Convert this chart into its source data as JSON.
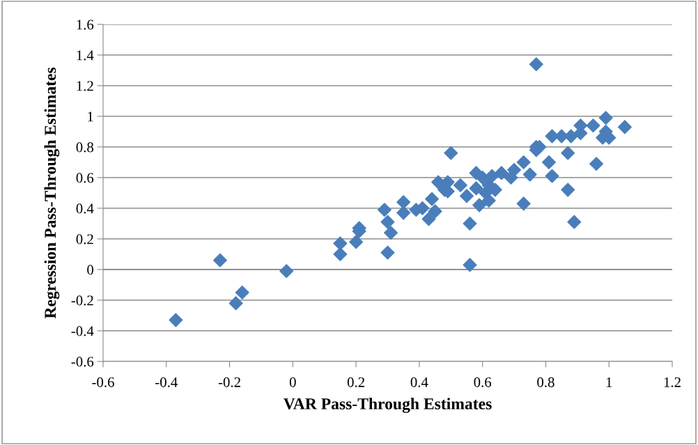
{
  "chart_data": {
    "type": "scatter",
    "xlabel": "VAR Pass-Through Estimates",
    "ylabel": "Regression Pass-Through Estimates",
    "xlim": [
      -0.6,
      1.2
    ],
    "xticks": [
      -0.6,
      -0.4,
      -0.2,
      0,
      0.2,
      0.4,
      0.6,
      0.8,
      1,
      1.2
    ],
    "ylim": [
      -0.6,
      1.6
    ],
    "yticks": [
      -0.6,
      -0.4,
      -0.2,
      0,
      0.2,
      0.4,
      0.6,
      0.8,
      1,
      1.2,
      1.4,
      1.6
    ],
    "grid": "y",
    "marker": "diamond",
    "legend": false,
    "series": [
      {
        "color": "#4a7ebb",
        "x": [
          -0.37,
          -0.23,
          -0.18,
          -0.16,
          -0.02,
          0.15,
          0.15,
          0.2,
          0.21,
          0.21,
          0.29,
          0.3,
          0.3,
          0.31,
          0.35,
          0.35,
          0.39,
          0.41,
          0.43,
          0.44,
          0.45,
          0.46,
          0.48,
          0.49,
          0.49,
          0.5,
          0.53,
          0.55,
          0.56,
          0.56,
          0.58,
          0.58,
          0.59,
          0.6,
          0.61,
          0.62,
          0.62,
          0.63,
          0.64,
          0.66,
          0.69,
          0.7,
          0.73,
          0.73,
          0.75,
          0.77,
          0.77,
          0.78,
          0.77,
          0.81,
          0.82,
          0.82,
          0.85,
          0.87,
          0.87,
          0.88,
          0.89,
          0.91,
          0.91,
          0.95,
          0.96,
          0.98,
          0.99,
          0.99,
          1.0,
          1.05
        ],
        "values": [
          -0.33,
          0.06,
          -0.22,
          -0.15,
          -0.01,
          0.1,
          0.17,
          0.18,
          0.25,
          0.27,
          0.39,
          0.31,
          0.11,
          0.24,
          0.37,
          0.44,
          0.39,
          0.4,
          0.33,
          0.46,
          0.38,
          0.57,
          0.52,
          0.57,
          0.51,
          0.76,
          0.55,
          0.48,
          0.3,
          0.03,
          0.63,
          0.53,
          0.42,
          0.6,
          0.5,
          0.45,
          0.55,
          0.61,
          0.52,
          0.63,
          0.6,
          0.65,
          0.7,
          0.43,
          0.62,
          0.8,
          0.78,
          0.8,
          1.34,
          0.7,
          0.87,
          0.61,
          0.87,
          0.76,
          0.52,
          0.87,
          0.31,
          0.94,
          0.89,
          0.94,
          0.69,
          0.86,
          0.99,
          0.9,
          0.86,
          0.93
        ]
      }
    ]
  }
}
